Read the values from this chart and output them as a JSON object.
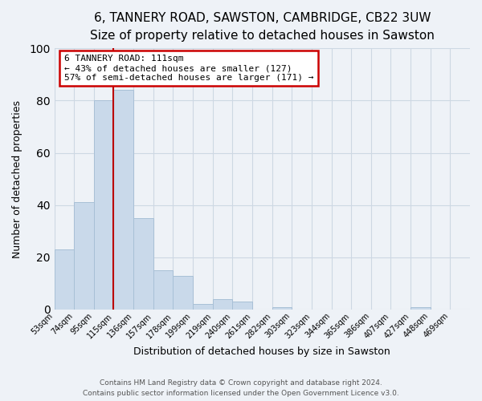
{
  "title": "6, TANNERY ROAD, SAWSTON, CAMBRIDGE, CB22 3UW",
  "subtitle": "Size of property relative to detached houses in Sawston",
  "xlabel": "Distribution of detached houses by size in Sawston",
  "ylabel": "Number of detached properties",
  "bar_labels": [
    "53sqm",
    "74sqm",
    "95sqm",
    "115sqm",
    "136sqm",
    "157sqm",
    "178sqm",
    "199sqm",
    "219sqm",
    "240sqm",
    "261sqm",
    "282sqm",
    "303sqm",
    "323sqm",
    "344sqm",
    "365sqm",
    "386sqm",
    "407sqm",
    "427sqm",
    "448sqm",
    "469sqm"
  ],
  "bar_values": [
    23,
    41,
    80,
    84,
    35,
    15,
    13,
    2,
    4,
    3,
    0,
    1,
    0,
    0,
    0,
    0,
    0,
    0,
    1,
    0,
    0
  ],
  "bar_color": "#c9d9ea",
  "bar_edge_color": "#a8c0d6",
  "bg_color": "#eef2f7",
  "grid_color": "#cdd8e3",
  "vline_color": "#bb0000",
  "annotation_text": "6 TANNERY ROAD: 111sqm\n← 43% of detached houses are smaller (127)\n57% of semi-detached houses are larger (171) →",
  "annotation_box_color": "#ffffff",
  "annotation_box_edge_color": "#cc0000",
  "ylim": [
    0,
    100
  ],
  "footer1": "Contains HM Land Registry data © Crown copyright and database right 2024.",
  "footer2": "Contains public sector information licensed under the Open Government Licence v3.0.",
  "title_fontsize": 11,
  "subtitle_fontsize": 9.5,
  "vline_index": 3
}
